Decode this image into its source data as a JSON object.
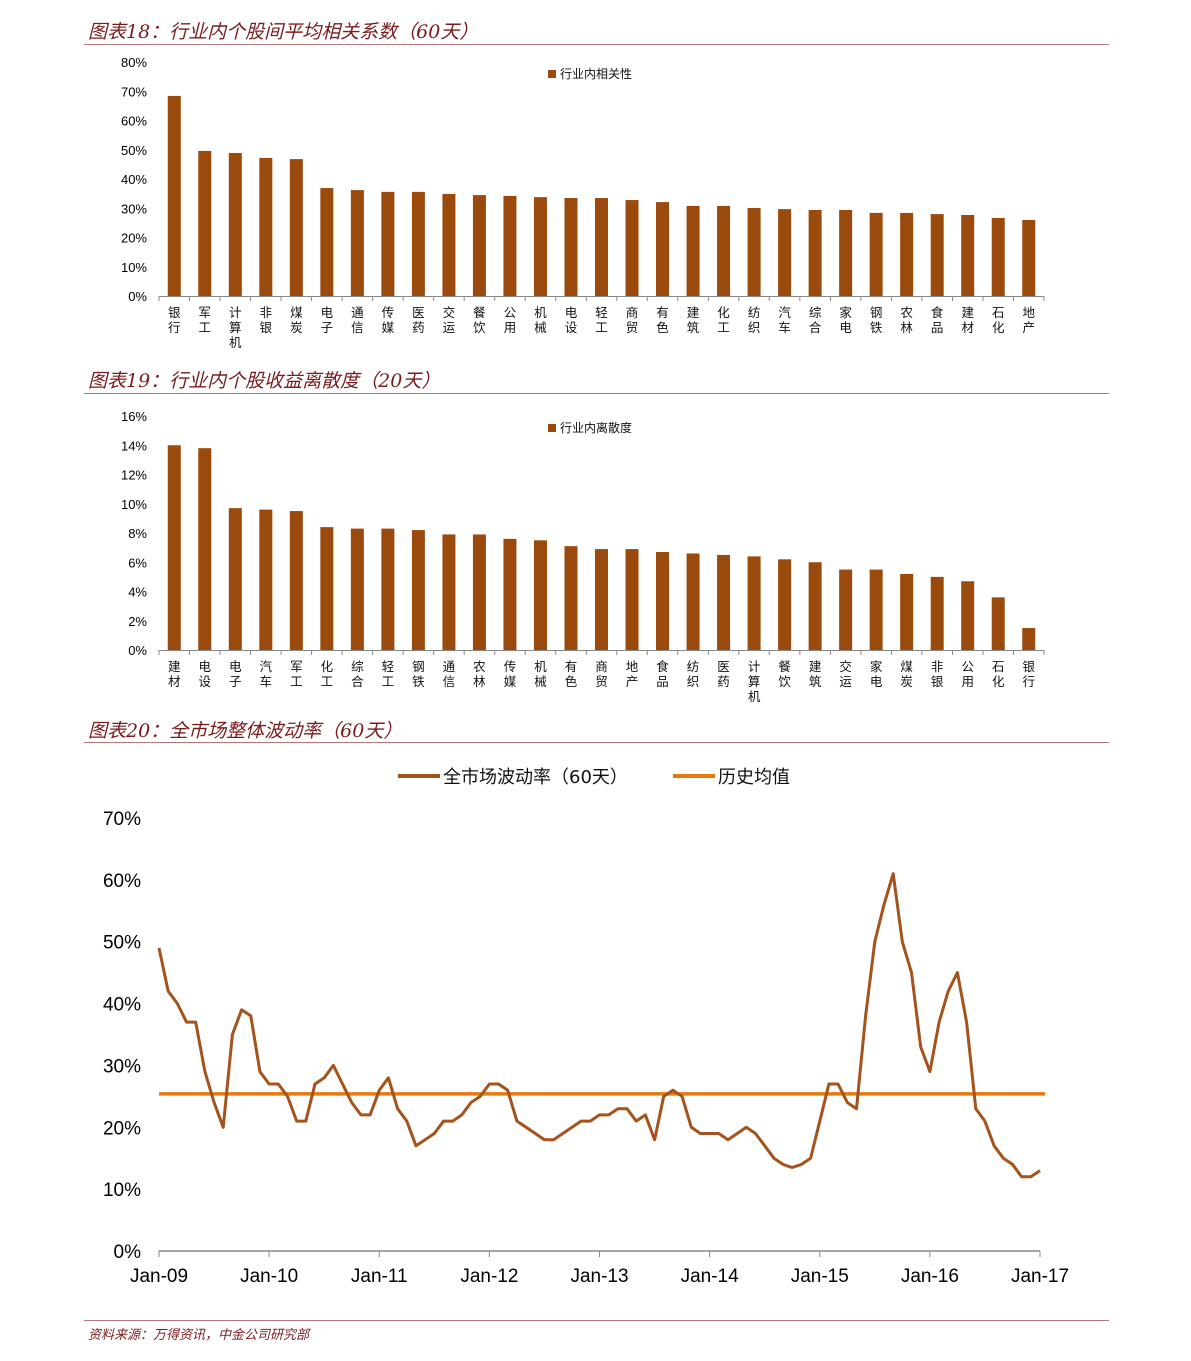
{
  "colors": {
    "bar": "#9a4a0c",
    "line": "#a3531b",
    "average": "#e8780f",
    "title": "#7a1c1c"
  },
  "chart_data": [
    {
      "type": "bar",
      "title": "图表18：行业内个股间平均相关系数（60天）",
      "legend": "行业内相关性",
      "legend_position": "top-center",
      "categories": [
        "银行",
        "军工",
        "计算机",
        "非银",
        "煤炭",
        "电子",
        "通信",
        "传媒",
        "医药",
        "交运",
        "餐饮",
        "公用",
        "机械",
        "电设",
        "轻工",
        "商贸",
        "有色",
        "建筑",
        "化工",
        "纺织",
        "汽车",
        "综合",
        "家电",
        "钢铁",
        "农林",
        "食品",
        "建材",
        "石化",
        "地产"
      ],
      "values": [
        68.4,
        49.6,
        48.9,
        47.2,
        46.8,
        36.9,
        36.2,
        35.6,
        35.6,
        34.9,
        34.5,
        34.2,
        33.8,
        33.5,
        33.5,
        32.8,
        32.1,
        30.8,
        30.8,
        30.1,
        29.7,
        29.4,
        29.4,
        28.4,
        28.4,
        28.0,
        27.7,
        26.7,
        26.0
      ],
      "ylim": [
        0,
        80
      ],
      "yticks": [
        "0%",
        "10%",
        "20%",
        "30%",
        "40%",
        "50%",
        "60%",
        "70%",
        "80%"
      ],
      "grid": false
    },
    {
      "type": "bar",
      "title": "图表19：行业内个股收益离散度（20天）",
      "legend": "行业内离散度",
      "legend_position": "top-center",
      "categories": [
        "建材",
        "电设",
        "电子",
        "汽车",
        "军工",
        "化工",
        "综合",
        "轻工",
        "钢铁",
        "通信",
        "农林",
        "传媒",
        "机械",
        "有色",
        "商贸",
        "地产",
        "食品",
        "纺织",
        "医药",
        "计算机",
        "餐饮",
        "建筑",
        "交运",
        "家电",
        "煤炭",
        "非银",
        "公用",
        "石化",
        "银行"
      ],
      "values": [
        14.0,
        13.8,
        9.7,
        9.6,
        9.5,
        8.4,
        8.3,
        8.3,
        8.2,
        7.9,
        7.9,
        7.6,
        7.5,
        7.1,
        6.9,
        6.9,
        6.7,
        6.6,
        6.5,
        6.4,
        6.2,
        6.0,
        5.5,
        5.5,
        5.2,
        5.0,
        4.7,
        3.6,
        1.5
      ],
      "ylim": [
        0,
        16
      ],
      "yticks": [
        "0%",
        "2%",
        "4%",
        "6%",
        "8%",
        "10%",
        "12%",
        "14%",
        "16%"
      ],
      "grid": false
    },
    {
      "type": "line",
      "title": "图表20：全市场整体波动率（60天）",
      "legend_position": "top-center",
      "ylim": [
        0,
        70
      ],
      "yticks": [
        "0%",
        "10%",
        "20%",
        "30%",
        "40%",
        "50%",
        "60%",
        "70%"
      ],
      "xticks": [
        "Jan-09",
        "Jan-10",
        "Jan-11",
        "Jan-12",
        "Jan-13",
        "Jan-14",
        "Jan-15",
        "Jan-16",
        "Jan-17"
      ],
      "grid": false,
      "series": [
        {
          "name": "全市场波动率（60天）",
          "x": [
            "2009-01",
            "2009-02",
            "2009-03",
            "2009-04",
            "2009-05",
            "2009-06",
            "2009-07",
            "2009-08",
            "2009-09",
            "2009-10",
            "2009-11",
            "2009-12",
            "2010-01",
            "2010-02",
            "2010-03",
            "2010-04",
            "2010-05",
            "2010-06",
            "2010-07",
            "2010-08",
            "2010-09",
            "2010-10",
            "2010-11",
            "2010-12",
            "2011-01",
            "2011-02",
            "2011-03",
            "2011-04",
            "2011-05",
            "2011-06",
            "2011-07",
            "2011-08",
            "2011-09",
            "2011-10",
            "2011-11",
            "2011-12",
            "2012-01",
            "2012-02",
            "2012-03",
            "2012-04",
            "2012-05",
            "2012-06",
            "2012-07",
            "2012-08",
            "2012-09",
            "2012-10",
            "2012-11",
            "2012-12",
            "2013-01",
            "2013-02",
            "2013-03",
            "2013-04",
            "2013-05",
            "2013-06",
            "2013-07",
            "2013-08",
            "2013-09",
            "2013-10",
            "2013-11",
            "2013-12",
            "2014-01",
            "2014-02",
            "2014-03",
            "2014-04",
            "2014-05",
            "2014-06",
            "2014-07",
            "2014-08",
            "2014-09",
            "2014-10",
            "2014-11",
            "2014-12",
            "2015-01",
            "2015-02",
            "2015-03",
            "2015-04",
            "2015-05",
            "2015-06",
            "2015-07",
            "2015-08",
            "2015-09",
            "2015-10",
            "2015-11",
            "2015-12",
            "2016-01",
            "2016-02",
            "2016-03",
            "2016-04",
            "2016-05",
            "2016-06",
            "2016-07",
            "2016-08",
            "2016-09",
            "2016-10",
            "2016-11",
            "2016-12",
            "2017-01"
          ],
          "values": [
            49,
            42,
            40,
            37,
            37,
            29,
            24,
            20,
            35,
            39,
            38,
            29,
            27,
            27,
            25,
            21,
            21,
            27,
            28,
            30,
            27,
            24,
            22,
            22,
            26,
            28,
            23,
            21,
            17,
            18,
            19,
            21,
            21,
            22,
            24,
            25,
            27,
            27,
            26,
            21,
            20,
            19,
            18,
            18,
            19,
            20,
            21,
            21,
            22,
            22,
            23,
            23,
            21,
            22,
            18,
            25,
            26,
            25,
            20,
            19,
            19,
            19,
            18,
            19,
            20,
            19,
            17,
            15,
            14,
            13.5,
            14,
            15,
            21,
            27,
            27,
            24,
            23,
            38,
            50,
            56,
            61,
            50,
            45,
            33,
            29,
            37,
            42,
            45,
            37,
            23,
            21,
            17,
            15,
            14,
            12,
            12,
            13
          ]
        },
        {
          "name": "历史均值",
          "value": 25.4
        }
      ]
    }
  ],
  "source": "资料来源：万得资讯，中金公司研究部"
}
